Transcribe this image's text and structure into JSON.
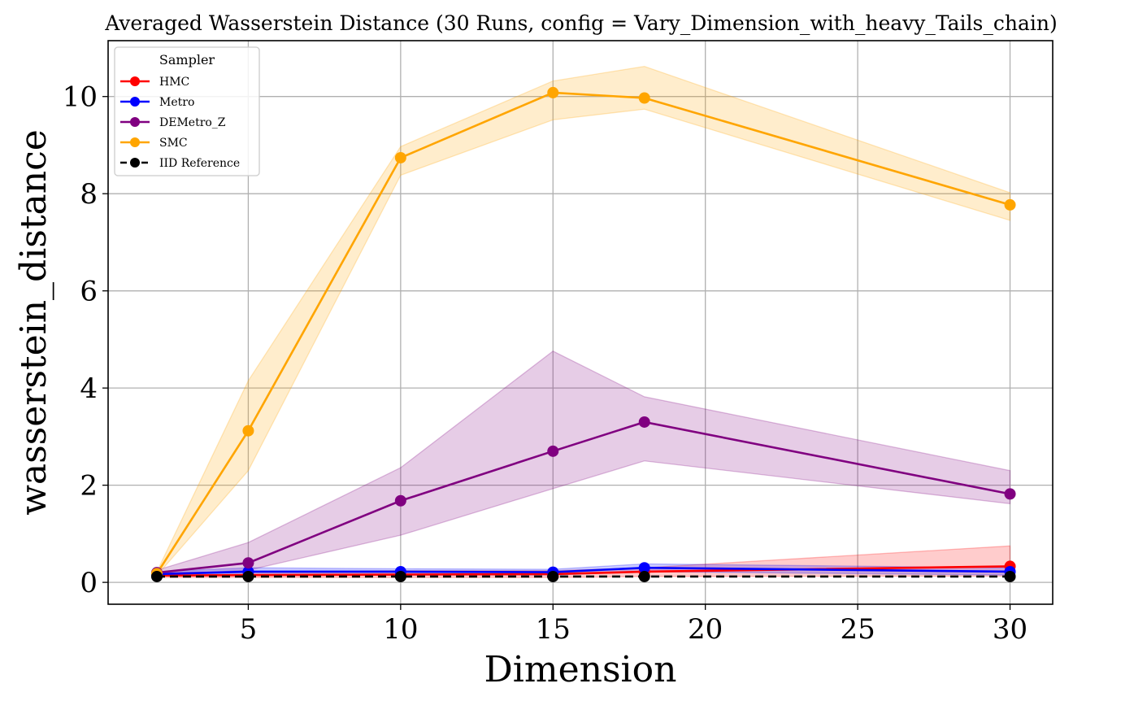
{
  "chart_data": {
    "type": "line",
    "title": "Averaged Wasserstein Distance (30 Runs, config = Vary_Dimension_with_heavy_Tails_chain)",
    "xlabel": "Dimension",
    "ylabel": "wasserstein_distance",
    "x": [
      2,
      5,
      10,
      15,
      18,
      30
    ],
    "xlim": [
      0.4,
      31.4
    ],
    "ylim": [
      -0.45,
      11.15
    ],
    "xticks": [
      5,
      10,
      15,
      20,
      25,
      30
    ],
    "yticks": [
      0,
      2,
      4,
      6,
      8,
      10
    ],
    "xtick_labels": [
      "5",
      "10",
      "15",
      "20",
      "25",
      "30"
    ],
    "ytick_labels": [
      "0",
      "2",
      "4",
      "6",
      "8",
      "10"
    ],
    "grid": true,
    "legend": {
      "title": "Sampler",
      "placement": "top-left"
    },
    "series": [
      {
        "name": "HMC",
        "color": "#ff0000",
        "dashed": false,
        "values": [
          0.14,
          0.15,
          0.16,
          0.17,
          0.22,
          0.33
        ],
        "band_low": [
          0.1,
          0.1,
          0.1,
          0.1,
          0.12,
          0.13
        ],
        "band_high": [
          0.2,
          0.22,
          0.24,
          0.24,
          0.3,
          0.75
        ]
      },
      {
        "name": "Metro",
        "color": "#0000ff",
        "dashed": false,
        "values": [
          0.17,
          0.22,
          0.22,
          0.21,
          0.3,
          0.22
        ],
        "band_low": [
          0.13,
          0.15,
          0.15,
          0.15,
          0.22,
          0.15
        ],
        "band_high": [
          0.22,
          0.3,
          0.28,
          0.27,
          0.38,
          0.3
        ]
      },
      {
        "name": "DEMetro_Z",
        "color": "#800080",
        "dashed": false,
        "values": [
          0.2,
          0.4,
          1.68,
          2.7,
          3.3,
          1.82
        ],
        "band_low": [
          0.15,
          0.25,
          0.97,
          1.93,
          2.5,
          1.62
        ],
        "band_high": [
          0.25,
          0.82,
          2.36,
          4.76,
          3.82,
          2.3
        ]
      },
      {
        "name": "SMC",
        "color": "#ffa500",
        "dashed": false,
        "values": [
          0.18,
          3.12,
          8.74,
          10.08,
          9.97,
          7.77
        ],
        "band_low": [
          0.14,
          2.3,
          8.38,
          9.52,
          9.74,
          7.45
        ],
        "band_high": [
          0.22,
          4.15,
          8.97,
          10.32,
          10.62,
          8.02
        ]
      },
      {
        "name": "IID Reference",
        "color": "#000000",
        "dashed": true,
        "values": [
          0.12,
          0.12,
          0.12,
          0.12,
          0.12,
          0.12
        ]
      }
    ]
  }
}
